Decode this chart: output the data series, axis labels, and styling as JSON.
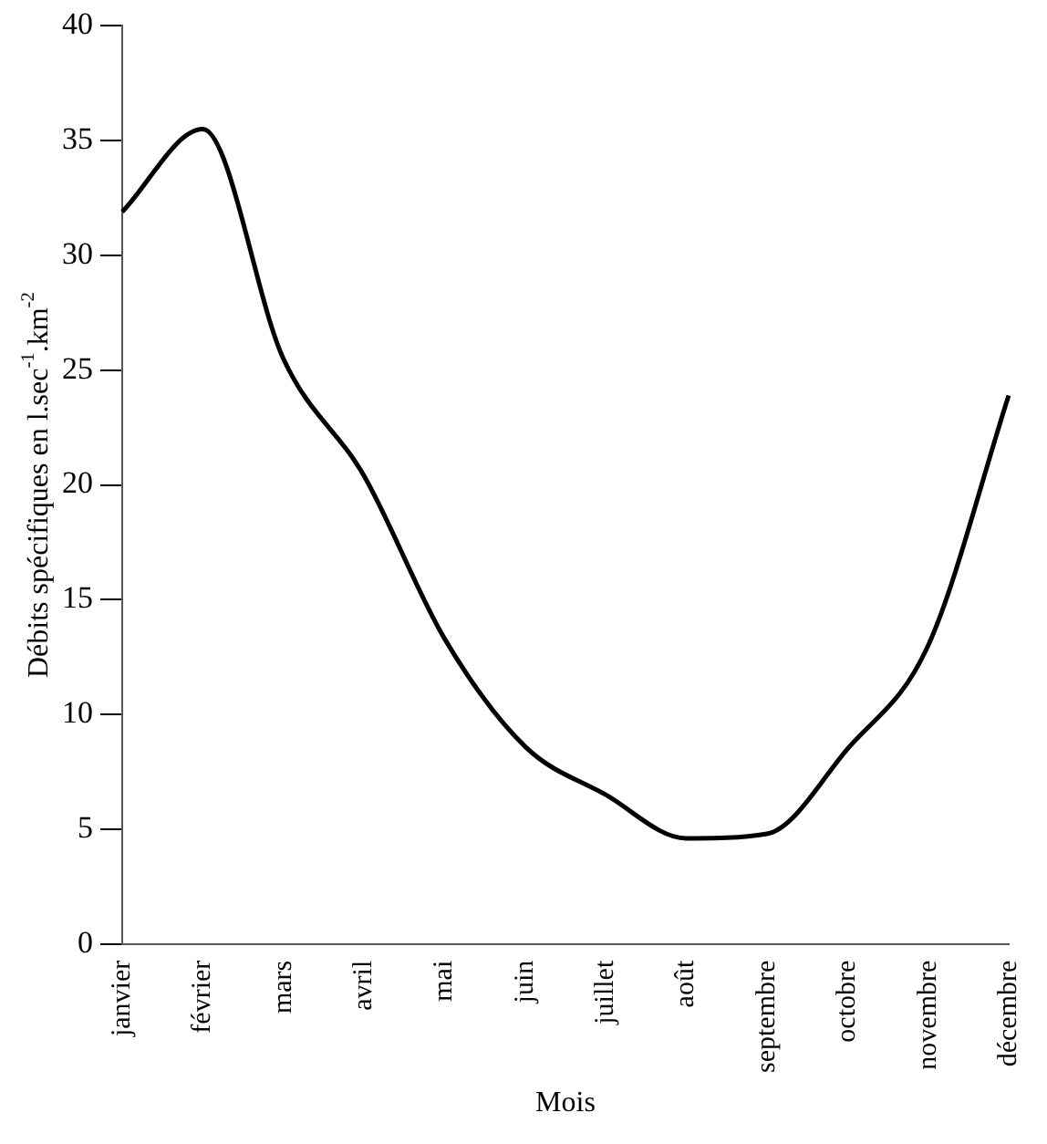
{
  "chart_data": {
    "type": "line",
    "xlabel": "Mois",
    "ylabel": "Débits spécifiques en l.sec$^{-1}$.km$^{-2}$",
    "categories": [
      "janvier",
      "février",
      "mars",
      "avril",
      "mai",
      "juin",
      "juillet",
      "août",
      "septembre",
      "octobre",
      "novembre",
      "décembre"
    ],
    "series": [
      {
        "color": "#000000",
        "values": [
          31.9,
          35.5,
          25.5,
          20.4,
          13.3,
          8.6,
          6.5,
          4.6,
          4.8,
          8.5,
          13,
          23.9
        ]
      }
    ],
    "ylim": [
      0,
      40
    ],
    "yticks": [
      0,
      5,
      10,
      15,
      20,
      25,
      30,
      35,
      40
    ],
    "grid": false,
    "legend": false,
    "marker": "none",
    "line_style": "solid"
  }
}
